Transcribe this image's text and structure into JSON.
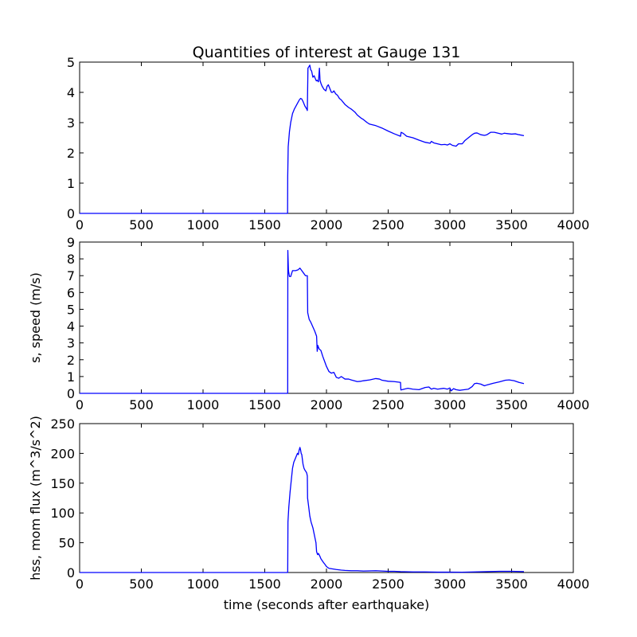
{
  "chart_data": [
    {
      "type": "line",
      "title": "Quantities of interest at Gauge 131",
      "xlabel": "",
      "ylabel": "",
      "xlim": [
        0,
        4000
      ],
      "ylim": [
        0,
        5
      ],
      "xticks": [
        "0",
        "500",
        "1000",
        "1500",
        "2000",
        "2500",
        "3000",
        "3500",
        "4000"
      ],
      "yticks": [
        "0",
        "1",
        "2",
        "3",
        "4",
        "5"
      ],
      "series": [
        {
          "color": "#0000ff",
          "points": [
            [
              0,
              0
            ],
            [
              1685,
              0
            ],
            [
              1686,
              1.2
            ],
            [
              1690,
              2.2
            ],
            [
              1700,
              2.7
            ],
            [
              1710,
              3.0
            ],
            [
              1725,
              3.3
            ],
            [
              1740,
              3.45
            ],
            [
              1760,
              3.6
            ],
            [
              1780,
              3.75
            ],
            [
              1790,
              3.8
            ],
            [
              1800,
              3.78
            ],
            [
              1810,
              3.7
            ],
            [
              1825,
              3.55
            ],
            [
              1840,
              3.45
            ],
            [
              1845,
              3.4
            ],
            [
              1850,
              4.8
            ],
            [
              1858,
              4.85
            ],
            [
              1865,
              4.9
            ],
            [
              1872,
              4.75
            ],
            [
              1880,
              4.7
            ],
            [
              1890,
              4.5
            ],
            [
              1900,
              4.55
            ],
            [
              1910,
              4.45
            ],
            [
              1918,
              4.38
            ],
            [
              1925,
              4.4
            ],
            [
              1935,
              4.35
            ],
            [
              1943,
              4.8
            ],
            [
              1948,
              4.4
            ],
            [
              1955,
              4.3
            ],
            [
              1965,
              4.2
            ],
            [
              1980,
              4.1
            ],
            [
              1995,
              4.05
            ],
            [
              2005,
              4.2
            ],
            [
              2015,
              4.25
            ],
            [
              2025,
              4.15
            ],
            [
              2040,
              4.0
            ],
            [
              2050,
              4.0
            ],
            [
              2060,
              4.05
            ],
            [
              2075,
              3.95
            ],
            [
              2090,
              3.9
            ],
            [
              2105,
              3.8
            ],
            [
              2120,
              3.75
            ],
            [
              2150,
              3.6
            ],
            [
              2180,
              3.5
            ],
            [
              2200,
              3.45
            ],
            [
              2230,
              3.35
            ],
            [
              2250,
              3.25
            ],
            [
              2280,
              3.15
            ],
            [
              2300,
              3.1
            ],
            [
              2330,
              3.0
            ],
            [
              2350,
              2.95
            ],
            [
              2400,
              2.9
            ],
            [
              2450,
              2.82
            ],
            [
              2500,
              2.72
            ],
            [
              2550,
              2.63
            ],
            [
              2600,
              2.55
            ],
            [
              2605,
              2.68
            ],
            [
              2620,
              2.65
            ],
            [
              2650,
              2.55
            ],
            [
              2700,
              2.5
            ],
            [
              2750,
              2.42
            ],
            [
              2800,
              2.35
            ],
            [
              2840,
              2.32
            ],
            [
              2850,
              2.38
            ],
            [
              2870,
              2.33
            ],
            [
              2900,
              2.3
            ],
            [
              2930,
              2.27
            ],
            [
              2960,
              2.28
            ],
            [
              2980,
              2.26
            ],
            [
              3000,
              2.3
            ],
            [
              3020,
              2.25
            ],
            [
              3050,
              2.22
            ],
            [
              3070,
              2.3
            ],
            [
              3100,
              2.3
            ],
            [
              3120,
              2.4
            ],
            [
              3150,
              2.5
            ],
            [
              3180,
              2.6
            ],
            [
              3200,
              2.65
            ],
            [
              3220,
              2.66
            ],
            [
              3250,
              2.6
            ],
            [
              3280,
              2.58
            ],
            [
              3300,
              2.6
            ],
            [
              3330,
              2.68
            ],
            [
              3360,
              2.68
            ],
            [
              3400,
              2.64
            ],
            [
              3420,
              2.62
            ],
            [
              3440,
              2.65
            ],
            [
              3460,
              2.64
            ],
            [
              3500,
              2.62
            ],
            [
              3530,
              2.63
            ],
            [
              3560,
              2.6
            ],
            [
              3600,
              2.57
            ]
          ]
        }
      ]
    },
    {
      "type": "line",
      "title": "",
      "xlabel": "",
      "ylabel": "s, speed (m/s)",
      "xlim": [
        0,
        4000
      ],
      "ylim": [
        0,
        9
      ],
      "xticks": [
        "0",
        "500",
        "1000",
        "1500",
        "2000",
        "2500",
        "3000",
        "3500",
        "4000"
      ],
      "yticks": [
        "0",
        "1",
        "2",
        "3",
        "4",
        "5",
        "6",
        "7",
        "8",
        "9"
      ],
      "series": [
        {
          "color": "#0000ff",
          "points": [
            [
              0,
              0
            ],
            [
              1680,
              0
            ],
            [
              1686,
              0
            ],
            [
              1687,
              8.5
            ],
            [
              1692,
              7.3
            ],
            [
              1700,
              6.95
            ],
            [
              1710,
              6.95
            ],
            [
              1725,
              7.3
            ],
            [
              1750,
              7.3
            ],
            [
              1770,
              7.35
            ],
            [
              1785,
              7.45
            ],
            [
              1800,
              7.3
            ],
            [
              1815,
              7.15
            ],
            [
              1830,
              7.0
            ],
            [
              1845,
              7.0
            ],
            [
              1848,
              4.8
            ],
            [
              1860,
              4.4
            ],
            [
              1875,
              4.2
            ],
            [
              1890,
              3.95
            ],
            [
              1905,
              3.7
            ],
            [
              1920,
              3.4
            ],
            [
              1925,
              2.5
            ],
            [
              1930,
              2.85
            ],
            [
              1940,
              2.65
            ],
            [
              1955,
              2.55
            ],
            [
              1970,
              2.2
            ],
            [
              1985,
              1.9
            ],
            [
              2000,
              1.6
            ],
            [
              2020,
              1.3
            ],
            [
              2040,
              1.2
            ],
            [
              2060,
              1.25
            ],
            [
              2080,
              0.95
            ],
            [
              2100,
              0.9
            ],
            [
              2120,
              1.0
            ],
            [
              2150,
              0.85
            ],
            [
              2180,
              0.85
            ],
            [
              2200,
              0.8
            ],
            [
              2250,
              0.7
            ],
            [
              2280,
              0.72
            ],
            [
              2300,
              0.75
            ],
            [
              2350,
              0.8
            ],
            [
              2400,
              0.88
            ],
            [
              2430,
              0.85
            ],
            [
              2450,
              0.78
            ],
            [
              2500,
              0.72
            ],
            [
              2550,
              0.7
            ],
            [
              2600,
              0.65
            ],
            [
              2603,
              0.2
            ],
            [
              2630,
              0.25
            ],
            [
              2660,
              0.3
            ],
            [
              2700,
              0.25
            ],
            [
              2750,
              0.22
            ],
            [
              2800,
              0.35
            ],
            [
              2830,
              0.38
            ],
            [
              2850,
              0.25
            ],
            [
              2870,
              0.3
            ],
            [
              2900,
              0.25
            ],
            [
              2950,
              0.3
            ],
            [
              2980,
              0.25
            ],
            [
              3000,
              0.32
            ],
            [
              3010,
              0.15
            ],
            [
              3030,
              0.28
            ],
            [
              3050,
              0.22
            ],
            [
              3080,
              0.18
            ],
            [
              3100,
              0.2
            ],
            [
              3150,
              0.25
            ],
            [
              3180,
              0.4
            ],
            [
              3200,
              0.58
            ],
            [
              3220,
              0.6
            ],
            [
              3250,
              0.55
            ],
            [
              3280,
              0.45
            ],
            [
              3300,
              0.5
            ],
            [
              3350,
              0.6
            ],
            [
              3400,
              0.68
            ],
            [
              3450,
              0.78
            ],
            [
              3480,
              0.8
            ],
            [
              3520,
              0.75
            ],
            [
              3560,
              0.65
            ],
            [
              3600,
              0.58
            ]
          ]
        }
      ]
    },
    {
      "type": "line",
      "title": "",
      "xlabel": "time (seconds after earthquake)",
      "ylabel": "hss, mom flux (m^3/s^2)",
      "xlim": [
        0,
        4000
      ],
      "ylim": [
        0,
        250
      ],
      "xticks": [
        "0",
        "500",
        "1000",
        "1500",
        "2000",
        "2500",
        "3000",
        "3500",
        "4000"
      ],
      "yticks": [
        "0",
        "50",
        "100",
        "150",
        "200",
        "250"
      ],
      "series": [
        {
          "color": "#0000ff",
          "points": [
            [
              0,
              0
            ],
            [
              1680,
              0
            ],
            [
              1686,
              0
            ],
            [
              1688,
              85
            ],
            [
              1695,
              110
            ],
            [
              1705,
              135
            ],
            [
              1715,
              155
            ],
            [
              1725,
              175
            ],
            [
              1735,
              185
            ],
            [
              1745,
              190
            ],
            [
              1755,
              195
            ],
            [
              1765,
              200
            ],
            [
              1772,
              198
            ],
            [
              1778,
              205
            ],
            [
              1785,
              210
            ],
            [
              1790,
              206
            ],
            [
              1795,
              200
            ],
            [
              1800,
              198
            ],
            [
              1805,
              190
            ],
            [
              1810,
              182
            ],
            [
              1818,
              175
            ],
            [
              1825,
              172
            ],
            [
              1832,
              170
            ],
            [
              1840,
              167
            ],
            [
              1845,
              162
            ],
            [
              1847,
              125
            ],
            [
              1855,
              112
            ],
            [
              1865,
              95
            ],
            [
              1875,
              85
            ],
            [
              1890,
              75
            ],
            [
              1905,
              60
            ],
            [
              1915,
              50
            ],
            [
              1920,
              35
            ],
            [
              1928,
              30
            ],
            [
              1935,
              32
            ],
            [
              1945,
              28
            ],
            [
              1955,
              23
            ],
            [
              1975,
              17
            ],
            [
              1990,
              13
            ],
            [
              2000,
              10
            ],
            [
              2020,
              7
            ],
            [
              2050,
              6
            ],
            [
              2080,
              5
            ],
            [
              2120,
              4
            ],
            [
              2150,
              3.5
            ],
            [
              2200,
              3
            ],
            [
              2250,
              3
            ],
            [
              2300,
              2.5
            ],
            [
              2400,
              3
            ],
            [
              2450,
              2.5
            ],
            [
              2500,
              2
            ],
            [
              2550,
              2
            ],
            [
              2600,
              1.5
            ],
            [
              2700,
              1
            ],
            [
              2800,
              1
            ],
            [
              2900,
              0.6
            ],
            [
              3000,
              0.6
            ],
            [
              3100,
              0.5
            ],
            [
              3200,
              1
            ],
            [
              3300,
              1.5
            ],
            [
              3400,
              2
            ],
            [
              3500,
              2
            ],
            [
              3600,
              1.5
            ]
          ]
        }
      ]
    }
  ]
}
